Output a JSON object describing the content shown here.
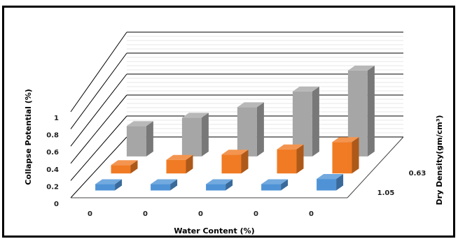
{
  "chart_data": {
    "type": "bar",
    "title": "",
    "xlabel": "Water Content  (%)",
    "ylabel": "Collapse Potential  (%)",
    "zlabel": "Dry Density(gm/cm³)",
    "categories": [
      "0",
      "0",
      "0",
      "0",
      "0"
    ],
    "depth_labels": [
      "1.05",
      "0.63"
    ],
    "y_ticks": [
      "0",
      "0.2",
      "0.4",
      "0.6",
      "0.8",
      "1"
    ],
    "ylim": [
      0,
      1
    ],
    "grid": true,
    "series": [
      {
        "color": "#4f93d6",
        "values": [
          0.06,
          0.06,
          0.06,
          0.06,
          0.11
        ]
      },
      {
        "color": "#f07b24",
        "values": [
          0.08,
          0.13,
          0.18,
          0.23,
          0.3
        ]
      },
      {
        "color": "#a6a6a6",
        "values": [
          0.29,
          0.37,
          0.47,
          0.62,
          0.82
        ]
      }
    ]
  }
}
